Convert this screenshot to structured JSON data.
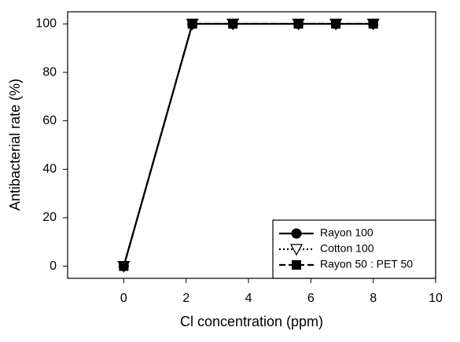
{
  "chart_data": {
    "type": "line",
    "x_label": "Cl concentration (ppm)",
    "y_label": "Antibacterial rate (%)",
    "x": [
      0,
      2.2,
      3.5,
      5.6,
      6.8,
      8
    ],
    "series": [
      {
        "name": "Rayon 100",
        "color": "#000000",
        "marker": "circle",
        "line_style": "solid",
        "values": [
          0,
          100,
          100,
          100,
          100,
          100
        ]
      },
      {
        "name": "Cotton 100",
        "color": "#000000",
        "marker": "triangle-down",
        "line_style": "dotted",
        "values": [
          0,
          100,
          100,
          100,
          100,
          100
        ]
      },
      {
        "name": "Rayon 50 : PET 50",
        "color": "#000000",
        "marker": "square",
        "line_style": "dashed",
        "values": [
          0,
          100,
          100,
          100,
          100,
          100
        ]
      }
    ],
    "xlim": [
      -1.8,
      10
    ],
    "xticks": [
      0,
      2,
      4,
      6,
      8,
      10
    ],
    "ylim": [
      -5,
      105
    ],
    "yticks": [
      0,
      20,
      40,
      60,
      80,
      100
    ],
    "grid": false,
    "legend": "lower right"
  }
}
